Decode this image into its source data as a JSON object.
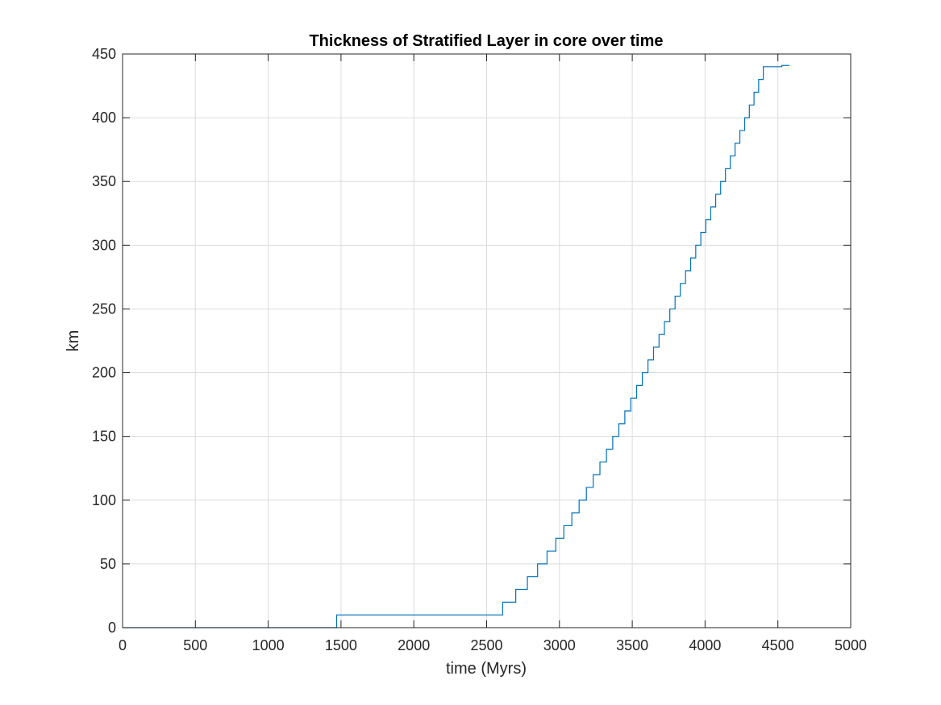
{
  "chart_data": {
    "type": "line",
    "title": "Thickness of Stratified Layer in core over time",
    "xlabel": "time (Myrs)",
    "ylabel": "km",
    "xlim": [
      0,
      5000
    ],
    "ylim": [
      0,
      450
    ],
    "xticks": [
      0,
      500,
      1000,
      1500,
      2000,
      2500,
      3000,
      3500,
      4000,
      4500,
      5000
    ],
    "yticks": [
      0,
      50,
      100,
      150,
      200,
      250,
      300,
      350,
      400,
      450
    ],
    "grid": true,
    "series_color": "#0072BD",
    "series": [
      {
        "step": "post",
        "x": [
          0,
          1470,
          2610,
          2700,
          2780,
          2850,
          2915,
          2975,
          3030,
          3085,
          3135,
          3185,
          3232,
          3278,
          3323,
          3366,
          3408,
          3449,
          3490,
          3530,
          3569,
          3608,
          3646,
          3684,
          3721,
          3758,
          3794,
          3830,
          3866,
          3901,
          3936,
          3971,
          4005,
          4039,
          4073,
          4107,
          4140,
          4173,
          4206,
          4239,
          4272,
          4304,
          4336,
          4368,
          4400,
          4432,
          4464,
          4496,
          4527,
          4580
        ],
        "y": [
          0,
          10,
          20,
          30,
          40,
          50,
          60,
          70,
          80,
          90,
          100,
          110,
          120,
          130,
          140,
          150,
          160,
          170,
          180,
          190,
          200,
          210,
          220,
          230,
          240,
          250,
          260,
          270,
          280,
          290,
          300,
          310,
          320,
          330,
          340,
          350,
          360,
          370,
          380,
          390,
          400,
          410,
          420,
          430,
          440,
          440,
          440,
          440,
          441,
          441
        ]
      }
    ]
  }
}
